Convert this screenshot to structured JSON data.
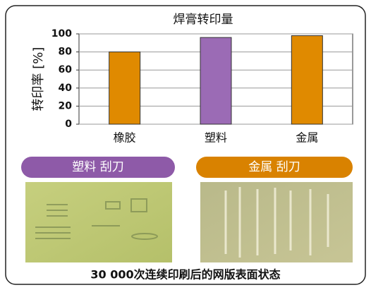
{
  "chart_data": {
    "type": "bar",
    "title": "焊膏转印量",
    "y_label": "转印率 [%]",
    "categories": [
      "橡胶",
      "塑料",
      "金属"
    ],
    "values": [
      80,
      96,
      98
    ],
    "colors": [
      "#e08a00",
      "#9b6bb5",
      "#e08a00"
    ],
    "ylim": [
      0,
      100
    ],
    "yticks": [
      0,
      20,
      40,
      60,
      80,
      100
    ],
    "grid": true
  },
  "panels": [
    {
      "label": "塑料 刮刀",
      "color": "#8e5aa8"
    },
    {
      "label": "金属 刮刀",
      "color": "#d98200"
    }
  ],
  "caption": "30 000次连续印刷后的网版表面状态"
}
